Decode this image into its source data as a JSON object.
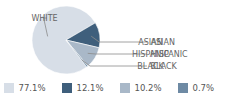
{
  "chart_data": {
    "type": "pie",
    "categories": [
      "WHITE",
      "ASIAN",
      "HISPANIC",
      "BLACK"
    ],
    "values": [
      77.1,
      12.1,
      10.2,
      0.7
    ],
    "value_labels": [
      "77.1%",
      "12.1%",
      "10.2%",
      "0.7%"
    ],
    "colors": [
      "#d7dee7",
      "#3f5f7c",
      "#a9b8c8",
      "#6e8aa4"
    ],
    "legend": "bottom"
  }
}
